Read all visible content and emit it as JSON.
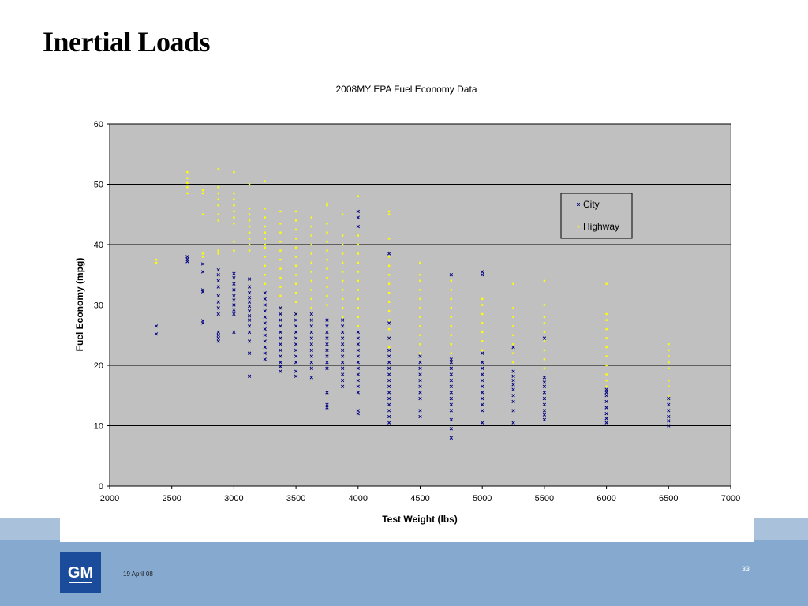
{
  "slide": {
    "title": "Inertial Loads",
    "date": "19 April 08",
    "page_number": "33",
    "logo_text": "GM"
  },
  "colors": {
    "plot_area": "#c0c0c0",
    "city": "#00007f",
    "highway": "#ffff00",
    "band_light": "#a9c1db",
    "band_dark": "#86a9cf",
    "logo": "#1b4c9c"
  },
  "chart_data": {
    "type": "scatter",
    "title": "2008MY EPA Fuel Economy Data",
    "xlabel": "Test Weight (lbs)",
    "ylabel": "Fuel Economy (mpg)",
    "xlim": [
      2000,
      7000
    ],
    "ylim": [
      0,
      60
    ],
    "xticks": [
      2000,
      2500,
      3000,
      3500,
      4000,
      4500,
      5000,
      5500,
      6000,
      6500,
      7000
    ],
    "yticks": [
      0,
      10,
      20,
      30,
      40,
      50,
      60
    ],
    "grid": "horizontal",
    "legend_position": "top-right",
    "series": [
      {
        "name": "City",
        "marker": "x",
        "columns": [
          {
            "x": 2375,
            "y": [
              25.2,
              26.5
            ]
          },
          {
            "x": 2625,
            "y": [
              37.2,
              37.6,
              38.0
            ]
          },
          {
            "x": 2750,
            "y": [
              27.0,
              27.4,
              32.2,
              32.5,
              35.5,
              36.8
            ]
          },
          {
            "x": 2875,
            "y": [
              24.0,
              24.5,
              25.0,
              25.5,
              28.5,
              29.5,
              30.5,
              31.5,
              33.0,
              34.0,
              35.0,
              35.8
            ]
          },
          {
            "x": 3000,
            "y": [
              25.5,
              28.5,
              29.2,
              30.0,
              30.8,
              31.5,
              32.5,
              33.5,
              34.5,
              35.2
            ]
          },
          {
            "x": 3125,
            "y": [
              18.2,
              22.0,
              24.0,
              25.5,
              26.5,
              27.5,
              28.2,
              29.0,
              29.8,
              30.5,
              31.2,
              32.0,
              33.0,
              34.3
            ]
          },
          {
            "x": 3250,
            "y": [
              21.0,
              22.0,
              23.0,
              24.0,
              25.0,
              26.0,
              27.0,
              28.0,
              29.0,
              30.0,
              31.0,
              32.0
            ]
          },
          {
            "x": 3375,
            "y": [
              19.0,
              19.8,
              20.5,
              21.5,
              22.5,
              23.5,
              24.5,
              25.5,
              26.5,
              27.5,
              28.5,
              29.5
            ]
          },
          {
            "x": 3500,
            "y": [
              18.2,
              19.0,
              20.5,
              21.5,
              22.5,
              23.5,
              24.5,
              25.5,
              26.5,
              27.5,
              28.5
            ]
          },
          {
            "x": 3625,
            "y": [
              18.0,
              19.5,
              20.5,
              21.5,
              22.5,
              23.5,
              24.5,
              25.5,
              26.5,
              27.5,
              28.5
            ]
          },
          {
            "x": 3750,
            "y": [
              13.0,
              13.5,
              15.5,
              19.5,
              20.5,
              21.5,
              22.5,
              23.5,
              24.5,
              25.5,
              26.5,
              27.5
            ]
          },
          {
            "x": 3875,
            "y": [
              16.5,
              17.5,
              18.5,
              19.5,
              20.5,
              21.5,
              22.5,
              23.5,
              24.5,
              25.5,
              26.5,
              27.5
            ]
          },
          {
            "x": 4000,
            "y": [
              12.0,
              12.5,
              15.5,
              16.5,
              17.5,
              18.5,
              19.5,
              20.5,
              21.5,
              22.5,
              23.5,
              24.5,
              25.5,
              43.0,
              44.5,
              45.5
            ]
          },
          {
            "x": 4250,
            "y": [
              10.5,
              11.5,
              12.5,
              13.5,
              14.5,
              15.5,
              16.5,
              17.5,
              18.5,
              19.5,
              20.5,
              21.5,
              22.5,
              24.5,
              27.0,
              38.5
            ]
          },
          {
            "x": 4500,
            "y": [
              11.5,
              12.5,
              14.5,
              15.5,
              16.5,
              17.5,
              18.5,
              19.5,
              20.5,
              21.5
            ]
          },
          {
            "x": 4750,
            "y": [
              8.0,
              9.5,
              11.0,
              12.5,
              13.5,
              14.5,
              15.5,
              16.5,
              17.5,
              18.5,
              19.5,
              20.5,
              21.0,
              35.0
            ]
          },
          {
            "x": 5000,
            "y": [
              10.5,
              12.5,
              13.5,
              14.5,
              15.5,
              16.5,
              17.5,
              18.5,
              19.5,
              20.5,
              22.0,
              35.0,
              35.5
            ]
          },
          {
            "x": 5250,
            "y": [
              10.5,
              12.5,
              14.0,
              15.0,
              16.0,
              16.8,
              17.5,
              18.2,
              19.0,
              23.0
            ]
          },
          {
            "x": 5500,
            "y": [
              11.0,
              11.8,
              12.5,
              13.5,
              14.5,
              15.5,
              16.5,
              17.2,
              18.0,
              24.5
            ]
          },
          {
            "x": 6000,
            "y": [
              10.5,
              11.2,
              12.0,
              13.0,
              14.0,
              15.0,
              15.5,
              16.0
            ]
          },
          {
            "x": 6500,
            "y": [
              10.0,
              10.8,
              11.5,
              12.5,
              13.5,
              14.5
            ]
          }
        ]
      },
      {
        "name": "Highway",
        "marker": "dot",
        "columns": [
          {
            "x": 2375,
            "y": [
              37.0,
              37.5
            ]
          },
          {
            "x": 2625,
            "y": [
              48.5,
              49.5,
              50.2,
              51.0,
              52.0
            ]
          },
          {
            "x": 2750,
            "y": [
              38.0,
              38.5,
              45.0,
              48.5,
              49.0
            ]
          },
          {
            "x": 2875,
            "y": [
              38.5,
              39.0,
              44.0,
              45.0,
              46.5,
              47.5,
              48.5,
              49.5,
              52.5
            ]
          },
          {
            "x": 3000,
            "y": [
              39.0,
              40.5,
              43.5,
              44.5,
              45.5,
              46.5,
              47.5,
              48.5,
              52.0
            ]
          },
          {
            "x": 3125,
            "y": [
              39.0,
              40.0,
              41.0,
              42.0,
              43.0,
              44.0,
              45.0,
              46.0,
              50.0
            ]
          },
          {
            "x": 3250,
            "y": [
              33.5,
              35.0,
              36.5,
              38.0,
              39.5,
              40.0,
              41.0,
              42.0,
              43.0,
              44.5,
              46.0,
              50.5
            ]
          },
          {
            "x": 3375,
            "y": [
              29.5,
              31.5,
              33.0,
              34.5,
              36.0,
              37.5,
              39.0,
              40.5,
              42.0,
              43.5,
              45.5
            ]
          },
          {
            "x": 3500,
            "y": [
              28.5,
              30.5,
              32.0,
              33.5,
              35.0,
              36.5,
              38.0,
              39.5,
              41.0,
              42.5,
              44.0,
              45.5
            ]
          },
          {
            "x": 3625,
            "y": [
              27.5,
              29.5,
              31.0,
              32.5,
              34.0,
              35.5,
              37.0,
              38.5,
              40.0,
              41.5,
              43.0,
              44.5
            ]
          },
          {
            "x": 3750,
            "y": [
              30.0,
              31.5,
              33.0,
              34.5,
              36.0,
              37.5,
              39.0,
              40.5,
              42.0,
              43.5,
              46.5,
              46.8
            ]
          },
          {
            "x": 3875,
            "y": [
              28.0,
              29.5,
              31.0,
              32.5,
              34.0,
              35.5,
              37.0,
              38.5,
              40.0,
              41.5,
              45.0
            ]
          },
          {
            "x": 4000,
            "y": [
              26.5,
              28.0,
              29.5,
              31.0,
              32.5,
              34.0,
              35.5,
              37.0,
              38.5,
              40.0,
              41.5,
              48.0
            ]
          },
          {
            "x": 4250,
            "y": [
              23.0,
              24.5,
              26.0,
              27.5,
              29.0,
              30.5,
              32.0,
              33.5,
              35.0,
              36.5,
              38.0,
              41.0,
              45.0,
              45.5
            ]
          },
          {
            "x": 4500,
            "y": [
              22.0,
              23.5,
              25.0,
              26.5,
              28.0,
              29.5,
              31.0,
              32.5,
              34.0,
              35.0,
              37.0
            ]
          },
          {
            "x": 4750,
            "y": [
              22.0,
              23.5,
              25.0,
              26.5,
              28.0,
              29.5,
              31.0,
              32.5,
              34.0
            ]
          },
          {
            "x": 5000,
            "y": [
              22.5,
              24.0,
              25.5,
              27.0,
              28.5,
              30.0,
              31.0
            ]
          },
          {
            "x": 5250,
            "y": [
              20.5,
              22.0,
              23.5,
              25.0,
              26.5,
              28.0,
              29.5,
              33.5
            ]
          },
          {
            "x": 5500,
            "y": [
              19.5,
              21.0,
              22.5,
              24.0,
              25.5,
              27.0,
              28.0,
              30.0,
              34.0
            ]
          },
          {
            "x": 6000,
            "y": [
              16.5,
              17.5,
              18.5,
              20.0,
              21.5,
              23.0,
              24.5,
              26.0,
              27.5,
              28.5,
              33.5
            ]
          },
          {
            "x": 6500,
            "y": [
              14.5,
              15.0,
              16.5,
              17.5,
              19.5,
              20.5,
              21.5,
              22.5,
              23.5
            ]
          }
        ]
      }
    ]
  }
}
